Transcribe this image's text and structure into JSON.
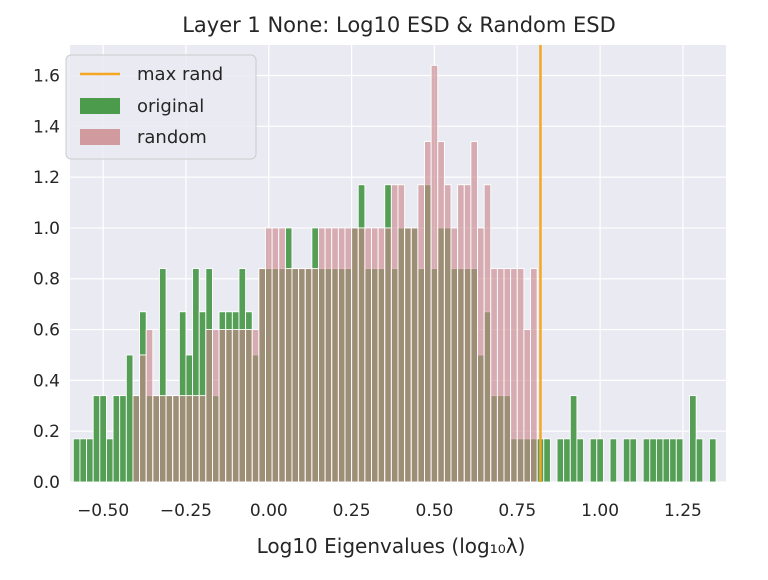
{
  "chart_data": {
    "type": "bar",
    "title": "Layer 1 None: Log10 ESD & Random ESD",
    "xlabel": "Log10 Eigenvalues (log₁₀λ)",
    "ylabel": "",
    "xlim": [
      -0.6,
      1.38
    ],
    "ylim": [
      0,
      1.72
    ],
    "xticks": [
      -0.5,
      -0.25,
      0.0,
      0.25,
      0.5,
      0.75,
      1.0,
      1.25
    ],
    "xtick_labels": [
      "−0.50",
      "−0.25",
      "0.00",
      "0.25",
      "0.50",
      "0.75",
      "1.00",
      "1.25"
    ],
    "yticks": [
      0.0,
      0.2,
      0.4,
      0.6,
      0.8,
      1.0,
      1.2,
      1.4,
      1.6
    ],
    "ytick_labels": [
      "0.0",
      "0.2",
      "0.4",
      "0.6",
      "0.8",
      "1.0",
      "1.2",
      "1.4",
      "1.6"
    ],
    "grid": true,
    "legend_position": "top-left",
    "legend": [
      "max rand",
      "original",
      "random"
    ],
    "max_rand": 0.82,
    "colors": {
      "original": "#4c9a4c",
      "random": "#c9868a",
      "max_rand": "#f5a623",
      "background": "#eaeaf2",
      "grid": "#ffffff"
    },
    "series": [
      {
        "name": "original",
        "bin_width": 0.02,
        "x": [
          -0.58,
          -0.56,
          -0.54,
          -0.52,
          -0.5,
          -0.48,
          -0.46,
          -0.44,
          -0.42,
          -0.4,
          -0.38,
          -0.36,
          -0.34,
          -0.32,
          -0.3,
          -0.28,
          -0.26,
          -0.24,
          -0.22,
          -0.2,
          -0.18,
          -0.16,
          -0.14,
          -0.12,
          -0.1,
          -0.08,
          -0.06,
          -0.04,
          -0.02,
          0.0,
          0.02,
          0.04,
          0.06,
          0.08,
          0.1,
          0.12,
          0.14,
          0.16,
          0.18,
          0.2,
          0.22,
          0.24,
          0.26,
          0.28,
          0.3,
          0.32,
          0.34,
          0.36,
          0.38,
          0.4,
          0.42,
          0.44,
          0.46,
          0.48,
          0.5,
          0.52,
          0.54,
          0.56,
          0.58,
          0.6,
          0.62,
          0.64,
          0.66,
          0.68,
          0.7,
          0.72,
          0.74,
          0.76,
          0.78,
          0.8,
          0.82,
          0.84,
          0.86,
          0.88,
          0.9,
          0.92,
          0.94,
          0.96,
          0.98,
          1.0,
          1.02,
          1.04,
          1.06,
          1.08,
          1.1,
          1.12,
          1.14,
          1.16,
          1.18,
          1.2,
          1.22,
          1.24,
          1.26,
          1.28,
          1.3,
          1.32,
          1.34
        ],
        "values": [
          0.17,
          0.17,
          0.17,
          0.34,
          0.34,
          0.17,
          0.34,
          0.34,
          0.5,
          0.34,
          0.67,
          0.34,
          0.34,
          0.84,
          0.34,
          0.34,
          0.67,
          0.5,
          0.84,
          0.67,
          0.84,
          0.34,
          0.67,
          0.67,
          0.67,
          0.84,
          0.67,
          0.5,
          0.84,
          0.84,
          0.84,
          0.84,
          1.0,
          0.84,
          0.84,
          0.84,
          1.0,
          0.84,
          0.84,
          0.84,
          0.84,
          0.84,
          1.0,
          1.17,
          0.84,
          0.84,
          0.84,
          1.17,
          0.84,
          1.0,
          1.0,
          1.0,
          0.84,
          1.17,
          0.84,
          1.0,
          1.0,
          0.84,
          0.84,
          0.84,
          0.84,
          0.5,
          0.67,
          0.34,
          0.34,
          0.34,
          0.17,
          0.17,
          0.17,
          0.17,
          0.17,
          0.17,
          0,
          0.17,
          0.17,
          0.34,
          0.17,
          0,
          0.17,
          0.17,
          0,
          0.17,
          0,
          0.17,
          0.17,
          0,
          0.17,
          0.17,
          0.17,
          0.17,
          0.17,
          0.17,
          0,
          0.34,
          0.17,
          0,
          0.17
        ]
      },
      {
        "name": "random",
        "bin_width": 0.02,
        "x": [
          -0.4,
          -0.38,
          -0.36,
          -0.34,
          -0.32,
          -0.3,
          -0.28,
          -0.26,
          -0.24,
          -0.22,
          -0.2,
          -0.18,
          -0.16,
          -0.14,
          -0.12,
          -0.1,
          -0.08,
          -0.06,
          -0.04,
          -0.02,
          0.0,
          0.02,
          0.04,
          0.06,
          0.08,
          0.1,
          0.12,
          0.14,
          0.16,
          0.18,
          0.2,
          0.22,
          0.24,
          0.26,
          0.28,
          0.3,
          0.32,
          0.34,
          0.36,
          0.38,
          0.4,
          0.42,
          0.44,
          0.46,
          0.48,
          0.5,
          0.52,
          0.54,
          0.56,
          0.58,
          0.6,
          0.62,
          0.64,
          0.66,
          0.68,
          0.7,
          0.72,
          0.74,
          0.76,
          0.78,
          0.8
        ],
        "values": [
          0.34,
          0.5,
          0.6,
          0.34,
          0.34,
          0.34,
          0.34,
          0.34,
          0.34,
          0.34,
          0.34,
          0.6,
          0.6,
          0.6,
          0.6,
          0.6,
          0.6,
          0.6,
          0.6,
          0.84,
          1.0,
          1.0,
          1.0,
          0.84,
          0.84,
          0.84,
          0.84,
          0.84,
          1.0,
          1.0,
          1.0,
          1.0,
          1.0,
          1.0,
          1.0,
          1.0,
          1.0,
          1.0,
          1.0,
          1.17,
          1.17,
          1.0,
          1.0,
          1.17,
          1.34,
          1.64,
          1.34,
          1.17,
          1.0,
          1.17,
          1.17,
          1.34,
          1.0,
          1.17,
          0.84,
          0.84,
          0.84,
          0.84,
          0.84,
          0.6,
          0.84
        ]
      }
    ]
  }
}
